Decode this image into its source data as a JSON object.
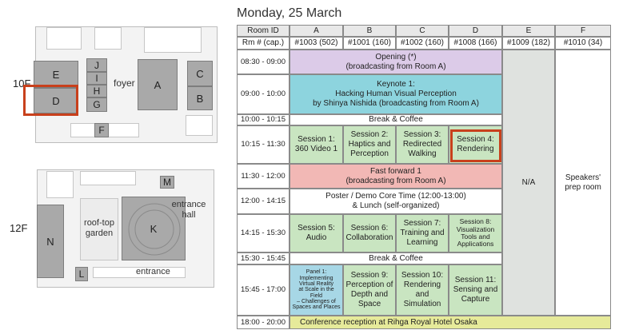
{
  "title": "Monday, 25 March",
  "floor10": {
    "label": "10F",
    "rooms": {
      "A": "A",
      "B": "B",
      "C": "C",
      "D": "D",
      "E": "E",
      "F": "F",
      "G": "G",
      "H": "H",
      "I": "I",
      "J": "J"
    },
    "foyer": "foyer"
  },
  "floor12": {
    "label": "12F",
    "rooms": {
      "K": "K",
      "L": "L",
      "M": "M",
      "N": "N"
    },
    "rooftop": "roof-top garden",
    "entrance_hall": "entrance hall",
    "entrance": "entrance"
  },
  "schedule": {
    "header": {
      "room_id": "Room ID",
      "cap": "Rm # (cap.)",
      "rooms": [
        "A",
        "B",
        "C",
        "D",
        "E",
        "F"
      ],
      "caps": [
        "#1003 (502)",
        "#1001 (160)",
        "#1002 (160)",
        "#1008 (166)",
        "#1009 (182)",
        "#1010 (34)"
      ]
    },
    "times": [
      "08:30 - 09:00",
      "09:00 - 10:00",
      "10:00 - 10:15",
      "10:15 - 11:30",
      "11:30 - 12:00",
      "12:00 - 14:15",
      "14:15 - 15:30",
      "15:30 - 15:45",
      "15:45 - 17:00",
      "18:00 - 20:00"
    ],
    "opening": "Opening (*)\n(broadcasting from Room A)",
    "keynote": "Keynote 1:\nHacking Human Visual Perception\nby Shinya Nishida (broadcasting from Room A)",
    "break1": "Break & Coffee",
    "s1": "Session 1:\n360 Video 1",
    "s2": "Session 2:\nHaptics and\nPerception",
    "s3": "Session 3:\nRedirected\nWalking",
    "s4": "Session 4:\nRendering",
    "fastforward": "Fast forward 1\n(broadcasting from Room A)",
    "poster": "Poster / Demo Core Time (12:00-13:00)\n& Lunch (self-organized)",
    "s5": "Session 5:\nAudio",
    "s6": "Session 6:\nCollaboration",
    "s7": "Session 7:\nTraining and\nLearning",
    "s8": "Session 8:\nVisualization\nTools and\nApplications",
    "break2": "Break & Coffee",
    "panel": "Panel 1:\nImplementing\nVirtual Reality\nat Scale in the Field\n– Challenges of\nSpaces and Places",
    "s9": "Session 9:\nPerception of\nDepth and\nSpace",
    "s10": "Session 10:\nRendering\nand Simulation",
    "s11": "Session 11:\nSensing and\nCapture",
    "na": "N/A",
    "speakers": "Speakers'\nprep room",
    "reception": "Conference reception at Rihga Royal Hotel Osaka"
  },
  "colors": {
    "highlight": "#c8401c",
    "purple": "#dccbe8",
    "cyan": "#8dd4de",
    "green": "#c9e5c1",
    "pink": "#f2b8b5",
    "yellow": "#e6ea9a"
  }
}
